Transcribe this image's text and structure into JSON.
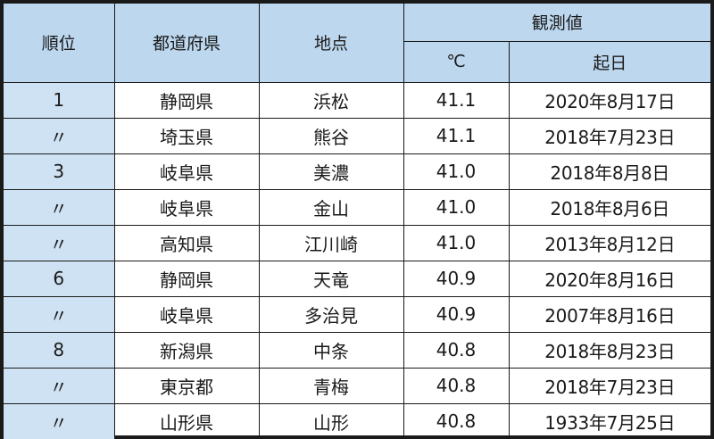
{
  "headers": {
    "rank": "順位",
    "prefecture": "都道府県",
    "location": "地点",
    "observed": "観測値",
    "celsius": "℃",
    "date": "起日"
  },
  "rows": [
    {
      "rank": "1",
      "prefecture": "静岡県",
      "location": "浜松",
      "temp": "41.1",
      "date": "2020年8月17日"
    },
    {
      "rank": "〃",
      "prefecture": "埼玉県",
      "location": "熊谷",
      "temp": "41.1",
      "date": "2018年7月23日"
    },
    {
      "rank": "3",
      "prefecture": "岐阜県",
      "location": "美濃",
      "temp": "41.0",
      "date": "2018年8月8日"
    },
    {
      "rank": "〃",
      "prefecture": "岐阜県",
      "location": "金山",
      "temp": "41.0",
      "date": "2018年8月6日"
    },
    {
      "rank": "〃",
      "prefecture": "高知県",
      "location": "江川崎",
      "temp": "41.0",
      "date": "2013年8月12日"
    },
    {
      "rank": "6",
      "prefecture": "静岡県",
      "location": "天竜",
      "temp": "40.9",
      "date": "2020年8月16日"
    },
    {
      "rank": "〃",
      "prefecture": "岐阜県",
      "location": "多治見",
      "temp": "40.9",
      "date": "2007年8月16日"
    },
    {
      "rank": "8",
      "prefecture": "新潟県",
      "location": "中条",
      "temp": "40.8",
      "date": "2018年8月23日"
    },
    {
      "rank": "〃",
      "prefecture": "東京都",
      "location": "青梅",
      "temp": "40.8",
      "date": "2018年7月23日"
    },
    {
      "rank": "〃",
      "prefecture": "山形県",
      "location": "山形",
      "temp": "40.8",
      "date": "1933年7月25日"
    }
  ],
  "colors": {
    "header_bg": "#bcd7ee",
    "rank_bg": "#cfe2f3",
    "border": "#1a1a1a"
  }
}
